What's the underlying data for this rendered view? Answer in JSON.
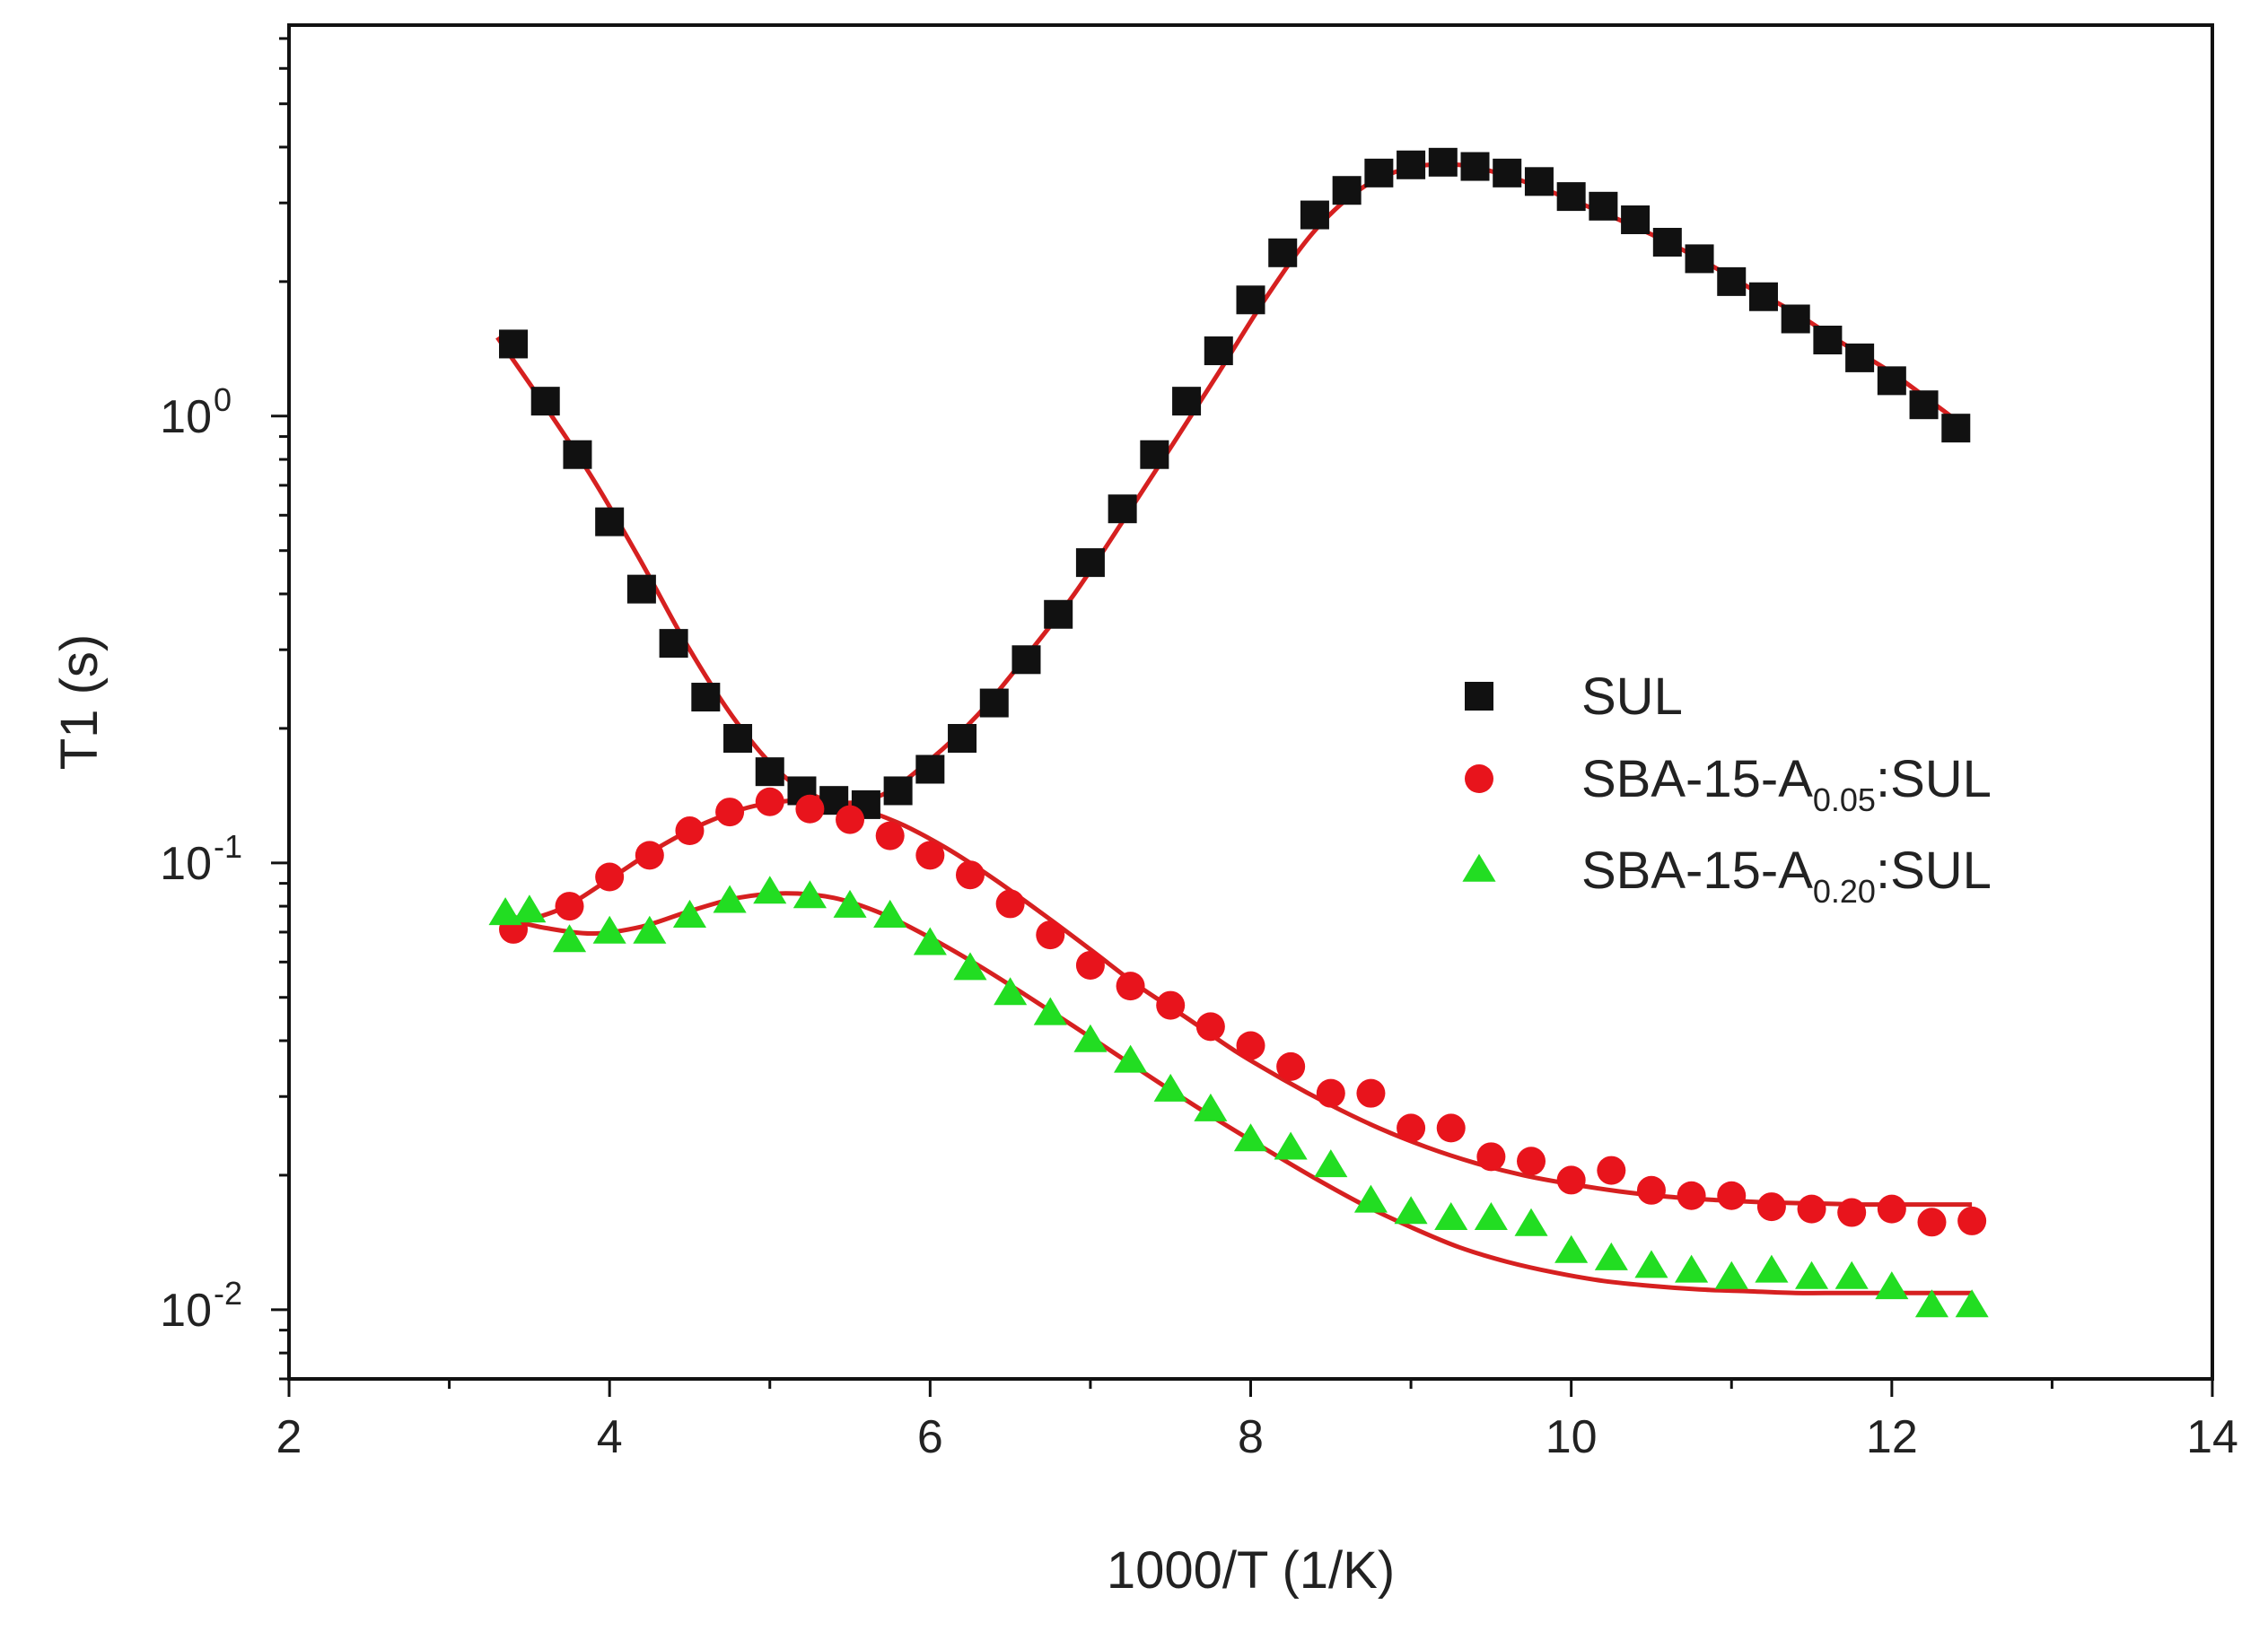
{
  "chart_data": {
    "type": "scatter",
    "title": "",
    "xlabel": "1000/T (1/K)",
    "ylabel": "T1 (s)",
    "xlim": [
      2,
      14
    ],
    "ylim": [
      0.007,
      7.5
    ],
    "yscale": "log",
    "x_ticks": [
      2,
      4,
      6,
      8,
      10,
      12,
      14
    ],
    "x_tick_labels": [
      "2",
      "4",
      "6",
      "8",
      "10",
      "12",
      "14"
    ],
    "y_ticks": [
      {
        "value": 1,
        "base": "10",
        "exp": "0"
      },
      {
        "value": 0.1,
        "base": "10",
        "exp": "-1"
      },
      {
        "value": 0.01,
        "base": "10",
        "exp": "-2"
      }
    ],
    "legend_position": "center-right",
    "fit_color": "#d62020",
    "series": [
      {
        "name": "SUL",
        "legend_parts": {
          "main": "SUL",
          "sub": "",
          "tail": ""
        },
        "marker": "square",
        "color": "#111111",
        "x": [
          3.4,
          3.6,
          3.8,
          4.0,
          4.2,
          4.4,
          4.6,
          4.8,
          5.0,
          5.2,
          5.4,
          5.6,
          5.8,
          6.0,
          6.2,
          6.4,
          6.6,
          6.8,
          7.0,
          7.2,
          7.4,
          7.6,
          7.8,
          8.0,
          8.2,
          8.4,
          8.6,
          8.8,
          9.0,
          9.2,
          9.4,
          9.6,
          9.8,
          10.0,
          10.2,
          10.4,
          10.6,
          10.8,
          11.0,
          11.2,
          11.4,
          11.6,
          11.8,
          12.0,
          12.2,
          12.4
        ],
        "y": [
          1.45,
          1.08,
          0.82,
          0.58,
          0.41,
          0.31,
          0.235,
          0.19,
          0.16,
          0.145,
          0.138,
          0.135,
          0.145,
          0.162,
          0.19,
          0.228,
          0.285,
          0.36,
          0.47,
          0.62,
          0.82,
          1.08,
          1.4,
          1.82,
          2.32,
          2.82,
          3.2,
          3.5,
          3.65,
          3.7,
          3.62,
          3.5,
          3.35,
          3.1,
          2.95,
          2.75,
          2.45,
          2.25,
          2.0,
          1.85,
          1.65,
          1.48,
          1.35,
          1.2,
          1.06,
          0.94
        ]
      },
      {
        "name": "SBA-15-A0.05:SUL",
        "legend_parts": {
          "main": "SBA-15-A",
          "sub": "0.05",
          "tail": ":SUL"
        },
        "marker": "circle",
        "color": "#e8141c",
        "x": [
          3.4,
          3.75,
          4.0,
          4.25,
          4.5,
          4.75,
          5.0,
          5.25,
          5.5,
          5.75,
          6.0,
          6.25,
          6.5,
          6.75,
          7.0,
          7.25,
          7.5,
          7.75,
          8.0,
          8.25,
          8.5,
          8.75,
          9.0,
          9.25,
          9.5,
          9.75,
          10.0,
          10.25,
          10.5,
          10.75,
          11.0,
          11.25,
          11.5,
          11.75,
          12.0,
          12.25,
          12.5
        ],
        "y": [
          0.071,
          0.08,
          0.093,
          0.104,
          0.118,
          0.13,
          0.137,
          0.132,
          0.125,
          0.115,
          0.104,
          0.094,
          0.081,
          0.069,
          0.059,
          0.053,
          0.048,
          0.043,
          0.039,
          0.035,
          0.0305,
          0.0305,
          0.0255,
          0.0255,
          0.022,
          0.0215,
          0.0195,
          0.0205,
          0.0185,
          0.018,
          0.018,
          0.017,
          0.0168,
          0.0165,
          0.0168,
          0.0157,
          0.0158
        ]
      },
      {
        "name": "SBA-15-A0.20:SUL",
        "legend_parts": {
          "main": "SBA-15-A",
          "sub": "0.20",
          "tail": ":SUL"
        },
        "marker": "triangle",
        "color": "#22dd22",
        "x": [
          3.35,
          3.5,
          3.75,
          4.0,
          4.25,
          4.5,
          4.75,
          5.0,
          5.25,
          5.5,
          5.75,
          6.0,
          6.25,
          6.5,
          6.75,
          7.0,
          7.25,
          7.5,
          7.75,
          8.0,
          8.25,
          8.5,
          8.75,
          9.0,
          9.25,
          9.5,
          9.75,
          10.0,
          10.25,
          10.5,
          10.75,
          11.0,
          11.25,
          11.5,
          11.75,
          12.0,
          12.25,
          12.5
        ],
        "y": [
          0.077,
          0.078,
          0.067,
          0.07,
          0.07,
          0.076,
          0.082,
          0.086,
          0.084,
          0.08,
          0.076,
          0.066,
          0.058,
          0.051,
          0.046,
          0.04,
          0.036,
          0.031,
          0.028,
          0.024,
          0.023,
          0.021,
          0.0175,
          0.0165,
          0.016,
          0.016,
          0.0155,
          0.0135,
          0.013,
          0.0125,
          0.0122,
          0.0118,
          0.0122,
          0.0118,
          0.0118,
          0.0112,
          0.0102,
          0.0102
        ]
      }
    ],
    "fit_curves": [
      {
        "name": "SUL fit",
        "x": [
          3.3,
          3.6,
          3.9,
          4.2,
          4.5,
          4.8,
          5.1,
          5.4,
          5.7,
          6.0,
          6.3,
          6.6,
          6.9,
          7.2,
          7.5,
          7.8,
          8.1,
          8.4,
          8.7,
          9.0,
          9.3,
          9.6,
          9.9,
          10.2,
          10.5,
          10.8,
          11.1,
          11.4,
          11.7,
          12.0,
          12.4
        ],
        "y": [
          1.5,
          1.05,
          0.72,
          0.47,
          0.3,
          0.205,
          0.155,
          0.137,
          0.142,
          0.17,
          0.215,
          0.29,
          0.4,
          0.58,
          0.85,
          1.25,
          1.85,
          2.6,
          3.25,
          3.6,
          3.65,
          3.45,
          3.15,
          2.85,
          2.55,
          2.25,
          1.95,
          1.7,
          1.45,
          1.25,
          0.98
        ]
      },
      {
        "name": "SBA-15-A0.05:SUL fit",
        "x": [
          3.4,
          3.7,
          4.0,
          4.3,
          4.6,
          4.9,
          5.2,
          5.5,
          5.8,
          6.1,
          6.4,
          6.7,
          7.0,
          7.3,
          7.6,
          7.9,
          8.2,
          8.5,
          8.8,
          9.1,
          9.4,
          9.7,
          10.0,
          10.3,
          10.6,
          10.9,
          11.2,
          11.5,
          11.8,
          12.1,
          12.5
        ],
        "y": [
          0.073,
          0.079,
          0.092,
          0.108,
          0.123,
          0.134,
          0.138,
          0.134,
          0.123,
          0.108,
          0.092,
          0.077,
          0.064,
          0.053,
          0.045,
          0.038,
          0.0328,
          0.0287,
          0.0255,
          0.0231,
          0.0213,
          0.02,
          0.0191,
          0.0184,
          0.0179,
          0.0176,
          0.0174,
          0.0173,
          0.0172,
          0.0172,
          0.0172
        ]
      },
      {
        "name": "SBA-15-A0.20:SUL fit",
        "x": [
          3.35,
          3.6,
          3.9,
          4.2,
          4.5,
          4.8,
          5.1,
          5.4,
          5.7,
          6.0,
          6.3,
          6.6,
          6.9,
          7.2,
          7.5,
          7.8,
          8.1,
          8.4,
          8.7,
          9.0,
          9.3,
          9.6,
          9.9,
          10.2,
          10.5,
          10.8,
          11.1,
          11.4,
          11.7,
          12.0,
          12.5
        ],
        "y": [
          0.075,
          0.0715,
          0.0695,
          0.072,
          0.078,
          0.0835,
          0.0855,
          0.0835,
          0.077,
          0.068,
          0.059,
          0.0505,
          0.043,
          0.0365,
          0.031,
          0.0265,
          0.0228,
          0.0197,
          0.0172,
          0.0153,
          0.0138,
          0.0128,
          0.0121,
          0.0116,
          0.0113,
          0.0111,
          0.011,
          0.0109,
          0.0109,
          0.0109,
          0.0109
        ]
      }
    ]
  }
}
